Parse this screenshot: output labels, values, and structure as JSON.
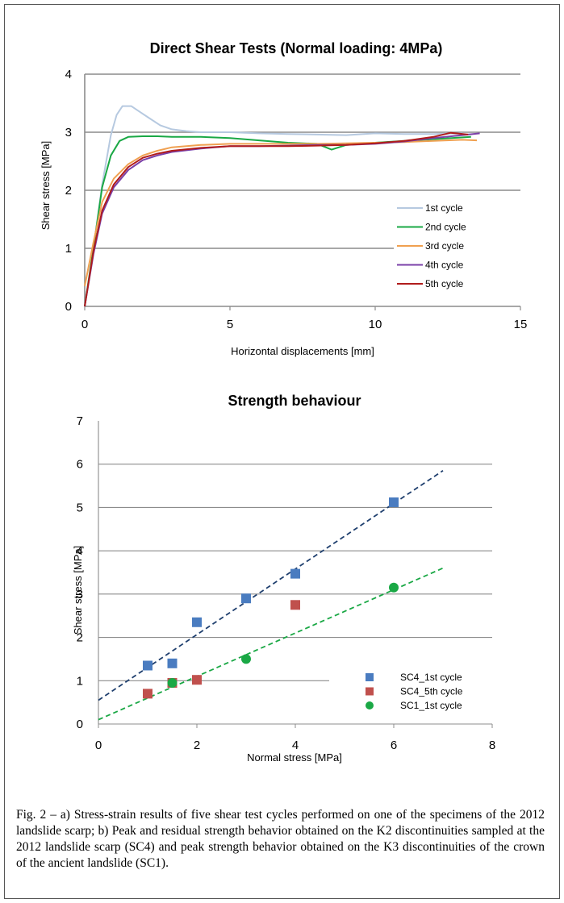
{
  "chart_data": [
    {
      "type": "line",
      "title": "Direct Shear Tests (Normal loading: 4MPa)",
      "xlabel": "Horizontal displacements [mm]",
      "ylabel": "Shear stress [MPa]",
      "xlim": [
        0,
        15
      ],
      "ylim": [
        0,
        4
      ],
      "xticks": [
        "0",
        "5",
        "10",
        "15"
      ],
      "yticks": [
        "0",
        "1",
        "2",
        "3",
        "4"
      ],
      "legend_position": "lower-right",
      "series": [
        {
          "name": "1st cycle",
          "color": "#b6c9e0",
          "x": [
            0,
            0.3,
            0.6,
            0.9,
            1.1,
            1.3,
            1.6,
            1.9,
            2.2,
            2.6,
            3.0,
            3.5,
            4.0,
            5,
            6,
            7,
            8,
            9,
            10,
            11,
            12,
            13
          ],
          "y": [
            0,
            1.0,
            2.1,
            2.95,
            3.3,
            3.45,
            3.45,
            3.35,
            3.25,
            3.12,
            3.05,
            3.02,
            3.0,
            3.0,
            2.98,
            2.97,
            2.96,
            2.95,
            2.98,
            2.97,
            2.97,
            2.98
          ]
        },
        {
          "name": "2nd cycle",
          "color": "#1aa845",
          "x": [
            0,
            0.3,
            0.6,
            0.9,
            1.2,
            1.5,
            2,
            2.5,
            3,
            4,
            5,
            6,
            7,
            8,
            8.5,
            9,
            10,
            11,
            12,
            13.3
          ],
          "y": [
            0,
            1.0,
            2.05,
            2.6,
            2.85,
            2.92,
            2.93,
            2.93,
            2.92,
            2.92,
            2.9,
            2.86,
            2.82,
            2.8,
            2.7,
            2.78,
            2.82,
            2.85,
            2.88,
            2.92
          ]
        },
        {
          "name": "3rd cycle",
          "color": "#f0a050",
          "x": [
            0,
            0.3,
            0.6,
            1.0,
            1.5,
            2,
            2.5,
            3,
            4,
            5,
            6,
            7,
            8,
            9,
            10,
            11,
            12,
            13,
            13.5
          ],
          "y": [
            0.35,
            1.1,
            1.8,
            2.2,
            2.45,
            2.6,
            2.68,
            2.74,
            2.78,
            2.8,
            2.8,
            2.8,
            2.8,
            2.81,
            2.82,
            2.83,
            2.85,
            2.87,
            2.86
          ]
        },
        {
          "name": "4th cycle",
          "color": "#7a3fa8",
          "x": [
            0,
            0.3,
            0.6,
            1.0,
            1.5,
            2,
            2.5,
            3,
            4,
            5,
            6,
            7,
            8,
            9,
            10,
            11,
            12,
            13,
            13.6
          ],
          "y": [
            0,
            0.9,
            1.6,
            2.05,
            2.35,
            2.52,
            2.6,
            2.66,
            2.72,
            2.76,
            2.76,
            2.77,
            2.78,
            2.78,
            2.8,
            2.84,
            2.9,
            2.95,
            2.98
          ]
        },
        {
          "name": "5th cycle",
          "color": "#b01c1c",
          "x": [
            0,
            0.3,
            0.6,
            1.0,
            1.5,
            2,
            2.5,
            3,
            4,
            5,
            6,
            7,
            8,
            9,
            10,
            11,
            12,
            12.6,
            13.2
          ],
          "y": [
            0,
            0.95,
            1.65,
            2.1,
            2.4,
            2.56,
            2.63,
            2.68,
            2.73,
            2.76,
            2.76,
            2.76,
            2.77,
            2.78,
            2.81,
            2.85,
            2.92,
            2.99,
            2.96
          ]
        }
      ]
    },
    {
      "type": "scatter",
      "title": "Strength behaviour",
      "xlabel": "Normal stress [MPa]",
      "ylabel": "Shear stress [MPa]",
      "xlim": [
        0,
        8
      ],
      "ylim": [
        0,
        7
      ],
      "xticks": [
        "0",
        "2",
        "4",
        "6",
        "8"
      ],
      "yticks": [
        "0",
        "1",
        "2",
        "3",
        "4",
        "5",
        "6",
        "7"
      ],
      "legend_position": "lower-right",
      "series": [
        {
          "name": "SC4_1st cycle",
          "color": "#4a7cc0",
          "marker": "square",
          "x": [
            1,
            1.5,
            2,
            3,
            4,
            6
          ],
          "y": [
            1.35,
            1.4,
            2.35,
            2.9,
            3.47,
            5.12
          ],
          "trend": {
            "x": [
              0,
              7
            ],
            "y": [
              0.55,
              5.85
            ],
            "color": "#1f3f6e"
          }
        },
        {
          "name": "SC4_5th cycle",
          "color": "#c0504d",
          "marker": "square",
          "x": [
            1,
            1.5,
            2,
            4
          ],
          "y": [
            0.7,
            0.95,
            1.02,
            2.75
          ]
        },
        {
          "name": "SC1_1st cycle",
          "color": "#1aa845",
          "marker": "circle",
          "x": [
            1.5,
            3,
            6
          ],
          "y": [
            0.95,
            1.5,
            3.15
          ],
          "trend": {
            "x": [
              0,
              7
            ],
            "y": [
              0.1,
              3.6
            ],
            "color": "#1aa845"
          }
        }
      ]
    }
  ],
  "caption": "Fig. 2 – a) Stress-strain results of five shear test cycles performed on one of the specimens of the 2012 landslide scarp; b) Peak and residual strength behavior obtained on the K2 discontinuities sampled at the 2012 landslide scarp (SC4) and peak strength behavior obtained on the K3 discontinuities of the crown of the ancient landslide (SC1)."
}
